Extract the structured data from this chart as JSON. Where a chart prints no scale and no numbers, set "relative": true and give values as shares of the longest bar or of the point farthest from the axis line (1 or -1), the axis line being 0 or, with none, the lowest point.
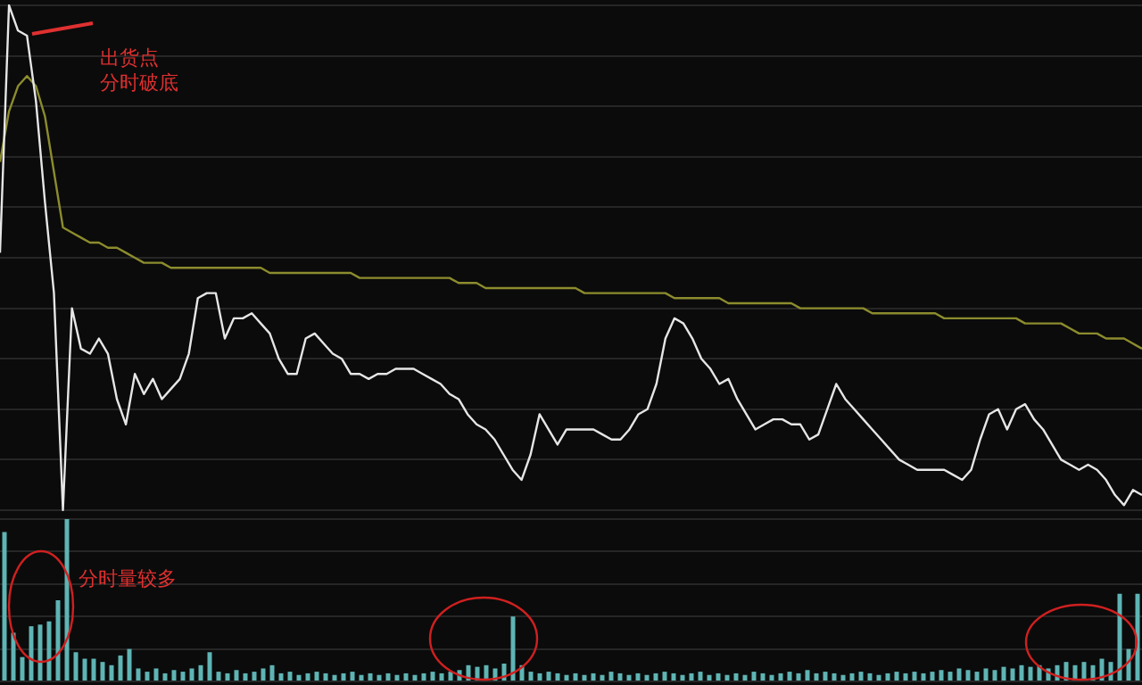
{
  "chart_data": [
    {
      "type": "line",
      "relative": true,
      "grid": "y",
      "legend": false,
      "marker": "none",
      "line_style": "solid",
      "categories": [
        null,
        null,
        null,
        null,
        null,
        null,
        null,
        null,
        null,
        null,
        null,
        null,
        null,
        null,
        null,
        null,
        null,
        null,
        null,
        null,
        null,
        null,
        null,
        null,
        null,
        null,
        null,
        null,
        null,
        null,
        null,
        null,
        null,
        null,
        null,
        null,
        null,
        null,
        null,
        null,
        null,
        null,
        null,
        null,
        null,
        null,
        null,
        null,
        null,
        null,
        null,
        null,
        null,
        null,
        null,
        null,
        null,
        null,
        null,
        null,
        null,
        null,
        null,
        null,
        null,
        null,
        null,
        null,
        null,
        null,
        null,
        null,
        null,
        null,
        null,
        null,
        null,
        null,
        null,
        null,
        null,
        null,
        null,
        null,
        null,
        null,
        null,
        null,
        null,
        null,
        null,
        null,
        null,
        null,
        null,
        null,
        null,
        null,
        null,
        null,
        null,
        null,
        null,
        null,
        null,
        null,
        null,
        null,
        null,
        null,
        null,
        null,
        null,
        null,
        null,
        null,
        null,
        null,
        null,
        null,
        null,
        null,
        null,
        null,
        null,
        null,
        null,
        null
      ],
      "series": [
        {
          "color": "#e6e6e6",
          "values": [
            0.51,
            1.0,
            0.95,
            0.94,
            0.81,
            0.61,
            0.43,
            0,
            0.4,
            0.32,
            0.31,
            0.34,
            0.31,
            0.22,
            0.17,
            0.27,
            0.23,
            0.26,
            0.22,
            0.24,
            0.26,
            0.31,
            0.42,
            0.43,
            0.43,
            0.34,
            0.38,
            0.38,
            0.39,
            0.37,
            0.35,
            0.3,
            0.27,
            0.27,
            0.34,
            0.35,
            0.33,
            0.31,
            0.3,
            0.27,
            0.27,
            0.26,
            0.27,
            0.27,
            0.28,
            0.28,
            0.28,
            0.27,
            0.26,
            0.25,
            0.23,
            0.22,
            0.19,
            0.17,
            0.16,
            0.14,
            0.11,
            0.08,
            0.06,
            0.11,
            0.19,
            0.16,
            0.13,
            0.16,
            0.16,
            0.16,
            0.16,
            0.15,
            0.14,
            0.14,
            0.16,
            0.19,
            0.2,
            0.25,
            0.34,
            0.38,
            0.37,
            0.34,
            0.3,
            0.28,
            0.25,
            0.26,
            0.22,
            0.19,
            0.16,
            0.17,
            0.18,
            0.18,
            0.17,
            0.17,
            0.14,
            0.15,
            0.2,
            0.25,
            0.22,
            0.2,
            0.18,
            0.16,
            0.14,
            0.12,
            0.1,
            0.09,
            0.08,
            0.08,
            0.08,
            0.08,
            0.07,
            0.06,
            0.08,
            0.14,
            0.19,
            0.2,
            0.16,
            0.2,
            0.21,
            0.18,
            0.16,
            0.13,
            0.1,
            0.09,
            0.08,
            0.09,
            0.08,
            0.06,
            0.03,
            0.01,
            0.04,
            0.03
          ]
        },
        {
          "color": "#8c8c2e",
          "values": [
            0.69,
            0.79,
            0.84,
            0.86,
            0.84,
            0.78,
            0.67,
            0.56,
            0.55,
            0.54,
            0.53,
            0.53,
            0.52,
            0.52,
            0.51,
            0.5,
            0.49,
            0.49,
            0.49,
            0.48,
            0.48,
            0.48,
            0.48,
            0.48,
            0.48,
            0.48,
            0.48,
            0.48,
            0.48,
            0.48,
            0.47,
            0.47,
            0.47,
            0.47,
            0.47,
            0.47,
            0.47,
            0.47,
            0.47,
            0.47,
            0.46,
            0.46,
            0.46,
            0.46,
            0.46,
            0.46,
            0.46,
            0.46,
            0.46,
            0.46,
            0.46,
            0.45,
            0.45,
            0.45,
            0.44,
            0.44,
            0.44,
            0.44,
            0.44,
            0.44,
            0.44,
            0.44,
            0.44,
            0.44,
            0.44,
            0.43,
            0.43,
            0.43,
            0.43,
            0.43,
            0.43,
            0.43,
            0.43,
            0.43,
            0.43,
            0.42,
            0.42,
            0.42,
            0.42,
            0.42,
            0.42,
            0.41,
            0.41,
            0.41,
            0.41,
            0.41,
            0.41,
            0.41,
            0.41,
            0.4,
            0.4,
            0.4,
            0.4,
            0.4,
            0.4,
            0.4,
            0.4,
            0.39,
            0.39,
            0.39,
            0.39,
            0.39,
            0.39,
            0.39,
            0.39,
            0.38,
            0.38,
            0.38,
            0.38,
            0.38,
            0.38,
            0.38,
            0.38,
            0.38,
            0.37,
            0.37,
            0.37,
            0.37,
            0.37,
            0.36,
            0.35,
            0.35,
            0.35,
            0.34,
            0.34,
            0.34,
            0.33,
            0.32
          ]
        }
      ],
      "annotations": [
        "出货点",
        "分时破底"
      ]
    },
    {
      "type": "bar",
      "relative": true,
      "grid": "y",
      "legend": false,
      "color": "#5fb4b4",
      "categories": [
        null,
        null,
        null,
        null,
        null,
        null,
        null,
        null,
        null,
        null,
        null,
        null,
        null,
        null,
        null,
        null,
        null,
        null,
        null,
        null,
        null,
        null,
        null,
        null,
        null,
        null,
        null,
        null,
        null,
        null,
        null,
        null,
        null,
        null,
        null,
        null,
        null,
        null,
        null,
        null,
        null,
        null,
        null,
        null,
        null,
        null,
        null,
        null,
        null,
        null,
        null,
        null,
        null,
        null,
        null,
        null,
        null,
        null,
        null,
        null,
        null,
        null,
        null,
        null,
        null,
        null,
        null,
        null,
        null,
        null,
        null,
        null,
        null,
        null,
        null,
        null,
        null,
        null,
        null,
        null,
        null,
        null,
        null,
        null,
        null,
        null,
        null,
        null,
        null,
        null,
        null,
        null,
        null,
        null,
        null,
        null,
        null,
        null,
        null,
        null,
        null,
        null,
        null,
        null,
        null,
        null,
        null,
        null,
        null,
        null,
        null,
        null,
        null,
        null,
        null,
        null,
        null,
        null,
        null,
        null,
        null,
        null,
        null,
        null,
        null,
        null,
        null,
        null
      ],
      "values": [
        0.92,
        0.3,
        0.15,
        0.34,
        0.35,
        0.37,
        0.5,
        1.0,
        0.18,
        0.14,
        0.14,
        0.12,
        0.1,
        0.16,
        0.2,
        0.08,
        0.06,
        0.08,
        0.05,
        0.07,
        0.06,
        0.08,
        0.1,
        0.18,
        0.06,
        0.05,
        0.07,
        0.05,
        0.06,
        0.08,
        0.1,
        0.05,
        0.06,
        0.04,
        0.05,
        0.06,
        0.05,
        0.04,
        0.05,
        0.06,
        0.04,
        0.05,
        0.04,
        0.05,
        0.04,
        0.05,
        0.04,
        0.05,
        0.06,
        0.05,
        0.06,
        0.07,
        0.1,
        0.09,
        0.1,
        0.08,
        0.11,
        0.4,
        0.1,
        0.06,
        0.05,
        0.06,
        0.05,
        0.04,
        0.05,
        0.04,
        0.05,
        0.04,
        0.06,
        0.05,
        0.04,
        0.05,
        0.04,
        0.05,
        0.06,
        0.05,
        0.04,
        0.05,
        0.06,
        0.04,
        0.05,
        0.04,
        0.05,
        0.04,
        0.06,
        0.05,
        0.04,
        0.05,
        0.06,
        0.05,
        0.07,
        0.05,
        0.06,
        0.05,
        0.04,
        0.05,
        0.06,
        0.05,
        0.04,
        0.05,
        0.06,
        0.05,
        0.06,
        0.05,
        0.06,
        0.07,
        0.06,
        0.08,
        0.07,
        0.06,
        0.08,
        0.07,
        0.09,
        0.08,
        0.1,
        0.09,
        0.1,
        0.08,
        0.1,
        0.12,
        0.1,
        0.12,
        0.1,
        0.14,
        0.12,
        0.54,
        0.2,
        0.54
      ],
      "annotations": [
        "分时量较多"
      ]
    }
  ]
}
